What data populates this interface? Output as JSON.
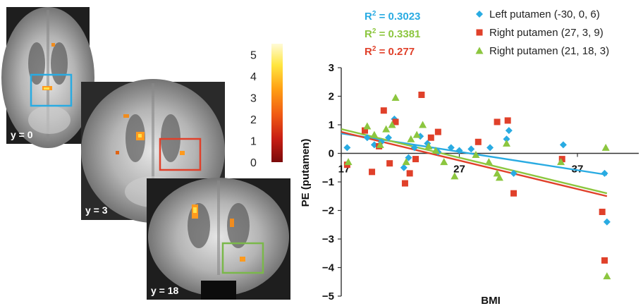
{
  "slices": [
    {
      "label": "y = 0",
      "box_color": "#29abe2"
    },
    {
      "label": "y = 3",
      "box_color": "#e0402a"
    },
    {
      "label": "y = 18",
      "box_color": "#7ab84a"
    }
  ],
  "colorbar": {
    "ticks": [
      "0",
      "1",
      "2",
      "3",
      "4",
      "5"
    ],
    "min": 0,
    "max": 5.5,
    "colors": [
      "#7a0a0a",
      "#c81e14",
      "#f05a14",
      "#ffa014",
      "#ffe640",
      "#fffbd8"
    ]
  },
  "r2": [
    {
      "prefix": "R",
      "exp": "2",
      "value": " = 0.3023",
      "color": "#29abe2"
    },
    {
      "prefix": "R",
      "exp": "2",
      "value": " = 0.3381",
      "color": "#8cc63f"
    },
    {
      "prefix": "R",
      "exp": "2",
      "value": " = 0.277",
      "color": "#e0402a"
    }
  ],
  "chart_data": {
    "type": "scatter",
    "xlabel": "BMI",
    "ylabel": "PE (putamen)",
    "xlim": [
      17,
      41
    ],
    "ylim": [
      -5,
      3
    ],
    "x_ticks": [
      {
        "value": 17,
        "label": "17"
      },
      {
        "value": 27,
        "label": "27"
      },
      {
        "value": 37,
        "label": "37"
      }
    ],
    "y_ticks": [
      {
        "value": 3,
        "label": "3"
      },
      {
        "value": 2,
        "label": "2"
      },
      {
        "value": 1,
        "label": "1"
      },
      {
        "value": 0,
        "label": "0"
      },
      {
        "value": -1,
        "label": "−1"
      },
      {
        "value": -2,
        "label": "−2"
      },
      {
        "value": -3,
        "label": "−3"
      },
      {
        "value": -4,
        "label": "−4"
      },
      {
        "value": -5,
        "label": "−5"
      }
    ],
    "legend_position": "top-right",
    "series": [
      {
        "name": "Left putamen (-30, 0, 6)",
        "marker": "diamond",
        "color": "#29abe2",
        "fit": {
          "x": [
            17,
            39.5
          ],
          "y": [
            0.7,
            -0.75
          ]
        },
        "points": [
          [
            17.5,
            0.2
          ],
          [
            19.2,
            0.55
          ],
          [
            19.8,
            0.3
          ],
          [
            20.4,
            0.4
          ],
          [
            21.0,
            0.55
          ],
          [
            21.5,
            1.2
          ],
          [
            22.3,
            -0.5
          ],
          [
            22.7,
            -0.15
          ],
          [
            23.2,
            0.2
          ],
          [
            23.7,
            0.6
          ],
          [
            24.3,
            0.35
          ],
          [
            25.2,
            0.05
          ],
          [
            26.3,
            0.2
          ],
          [
            27.0,
            0.1
          ],
          [
            28.0,
            0.15
          ],
          [
            29.6,
            0.2
          ],
          [
            31.2,
            0.8
          ],
          [
            31.6,
            -0.7
          ],
          [
            31.0,
            0.5
          ],
          [
            35.8,
            0.3
          ],
          [
            39.3,
            -0.7
          ],
          [
            39.5,
            -2.4
          ]
        ]
      },
      {
        "name": "Right putamen (27, 3, 9)",
        "marker": "square",
        "color": "#e0402a",
        "fit": {
          "x": [
            17,
            39.5
          ],
          "y": [
            0.75,
            -1.5
          ]
        },
        "points": [
          [
            17.5,
            -0.4
          ],
          [
            19.0,
            0.8
          ],
          [
            19.6,
            -0.65
          ],
          [
            20.2,
            0.25
          ],
          [
            20.6,
            1.5
          ],
          [
            21.1,
            -0.35
          ],
          [
            21.6,
            1.1
          ],
          [
            22.4,
            -1.05
          ],
          [
            22.8,
            -0.7
          ],
          [
            23.3,
            -0.2
          ],
          [
            23.8,
            2.05
          ],
          [
            24.6,
            0.55
          ],
          [
            25.2,
            0.75
          ],
          [
            28.6,
            0.4
          ],
          [
            30.2,
            1.1
          ],
          [
            31.1,
            1.15
          ],
          [
            31.6,
            -1.4
          ],
          [
            35.7,
            -0.2
          ],
          [
            39.1,
            -2.05
          ],
          [
            39.3,
            -3.75
          ]
        ]
      },
      {
        "name": "Right putamen (21, 18, 3)",
        "marker": "triangle",
        "color": "#8cc63f",
        "fit": {
          "x": [
            17,
            39.5
          ],
          "y": [
            0.85,
            -1.4
          ]
        },
        "points": [
          [
            17.6,
            -0.3
          ],
          [
            19.2,
            0.95
          ],
          [
            19.8,
            0.65
          ],
          [
            20.3,
            0.3
          ],
          [
            20.8,
            0.85
          ],
          [
            21.3,
            1.0
          ],
          [
            21.6,
            1.95
          ],
          [
            22.5,
            -0.3
          ],
          [
            22.9,
            0.5
          ],
          [
            23.4,
            0.65
          ],
          [
            23.9,
            1.0
          ],
          [
            24.4,
            0.25
          ],
          [
            25.0,
            0.1
          ],
          [
            25.7,
            -0.3
          ],
          [
            26.6,
            -0.8
          ],
          [
            28.4,
            -0.05
          ],
          [
            29.5,
            -0.3
          ],
          [
            30.2,
            -0.7
          ],
          [
            30.4,
            -0.85
          ],
          [
            31.0,
            0.35
          ],
          [
            35.6,
            -0.3
          ],
          [
            39.4,
            0.2
          ],
          [
            39.5,
            -4.3
          ]
        ]
      }
    ]
  }
}
